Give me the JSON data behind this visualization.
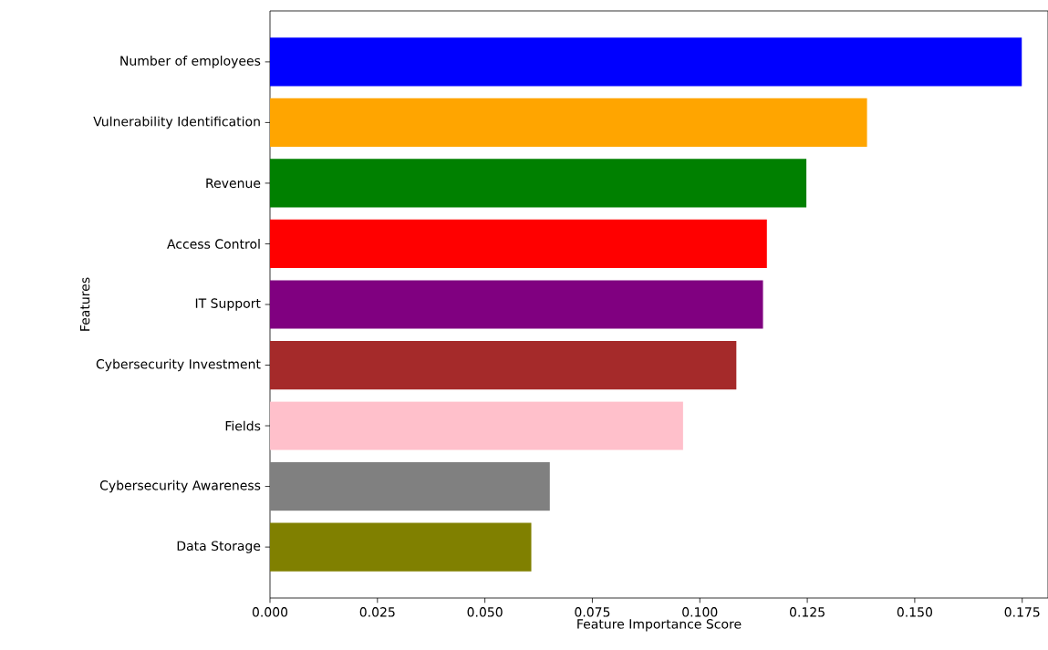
{
  "chart_data": {
    "type": "bar",
    "orientation": "horizontal",
    "xlabel": "Feature Importance Score",
    "ylabel": "Features",
    "categories": [
      "Number of employees",
      "Vulnerability Identification",
      "Revenue",
      "Access Control",
      "IT Support",
      "Cybersecurity Investment",
      "Fields",
      "Cybersecurity Awareness",
      "Data Storage"
    ],
    "values": [
      0.1749,
      0.1389,
      0.1248,
      0.1156,
      0.1147,
      0.1085,
      0.0961,
      0.0651,
      0.0608
    ],
    "colors": [
      "#0000ff",
      "#ffa500",
      "#008000",
      "#ff0000",
      "#800080",
      "#a52a2a",
      "#ffc0cb",
      "#808080",
      "#808000"
    ],
    "xlim": [
      0,
      0.181
    ],
    "xticks": [
      {
        "value": 0,
        "label": "0.000"
      },
      {
        "value": 0.025,
        "label": "0.025"
      },
      {
        "value": 0.05,
        "label": "0.050"
      },
      {
        "value": 0.075,
        "label": "0.075"
      },
      {
        "value": 0.1,
        "label": "0.100"
      },
      {
        "value": 0.125,
        "label": "0.125"
      },
      {
        "value": 0.15,
        "label": "0.150"
      },
      {
        "value": 0.175,
        "label": "0.175"
      }
    ]
  }
}
